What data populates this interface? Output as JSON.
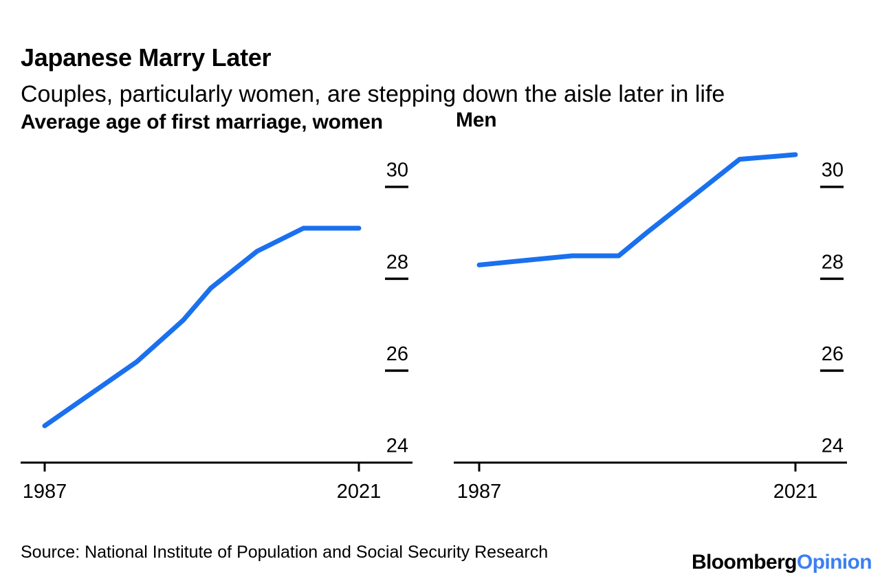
{
  "header": {
    "title": "Japanese Marry Later",
    "subtitle": "Couples, particularly women, are stepping down the aisle later in life"
  },
  "footer": {
    "source": "Source: National Institute of Population and Social Security Research",
    "logo_black": "Bloomberg",
    "logo_blue": "Opinion"
  },
  "colors": {
    "line_blue": "#1a70ee",
    "logo_blue": "#3b7ff2",
    "axis_black": "#000000"
  },
  "chart_data": [
    {
      "type": "line",
      "title": "Average age of first marriage, women",
      "x": [
        1987,
        1992,
        1997,
        2002,
        2005,
        2010,
        2015,
        2021
      ],
      "series": [
        {
          "name": "Women",
          "values": [
            24.8,
            25.5,
            26.2,
            27.1,
            27.8,
            28.6,
            29.1,
            29.1
          ]
        }
      ],
      "xlabel": "",
      "ylabel": "",
      "ylim": [
        24,
        31
      ],
      "yticks": [
        24,
        26,
        28,
        30
      ],
      "xticks": [
        1987,
        2021
      ],
      "grid": false,
      "legend": "none",
      "line_color": "#1a70ee"
    },
    {
      "type": "line",
      "title": "Men",
      "x": [
        1987,
        1992,
        1997,
        2002,
        2005,
        2010,
        2015,
        2021
      ],
      "series": [
        {
          "name": "Men",
          "values": [
            28.3,
            28.4,
            28.5,
            28.5,
            29.0,
            29.8,
            30.6,
            30.7
          ]
        }
      ],
      "xlabel": "",
      "ylabel": "",
      "ylim": [
        24,
        31
      ],
      "yticks": [
        24,
        26,
        28,
        30
      ],
      "xticks": [
        1987,
        2021
      ],
      "grid": false,
      "legend": "none",
      "line_color": "#1a70ee"
    }
  ]
}
